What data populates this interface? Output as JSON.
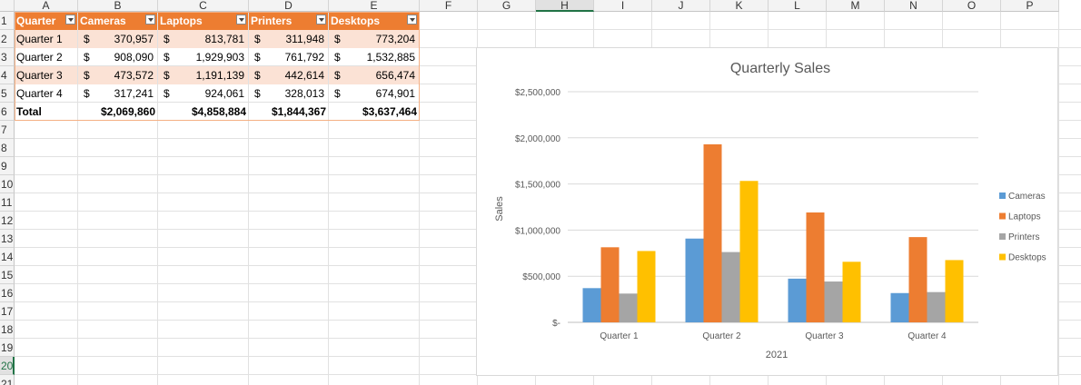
{
  "columns": [
    "A",
    "B",
    "C",
    "D",
    "E",
    "F",
    "G",
    "H",
    "I",
    "J",
    "K",
    "L",
    "M",
    "N",
    "O",
    "P"
  ],
  "rows": [
    "1",
    "2",
    "3",
    "4",
    "5",
    "6",
    "7",
    "8",
    "9",
    "10",
    "11",
    "12",
    "13",
    "14",
    "15",
    "16",
    "17",
    "18",
    "19",
    "20",
    "21"
  ],
  "selected_column": "H",
  "selected_row": "20",
  "table": {
    "headers": [
      "Quarter",
      "Cameras",
      "Laptops",
      "Printers",
      "Desktops"
    ],
    "rows": [
      {
        "quarter": "Quarter 1",
        "values": [
          "370,957",
          "813,781",
          "311,948",
          "773,204"
        ]
      },
      {
        "quarter": "Quarter 2",
        "values": [
          "908,090",
          "1,929,903",
          "761,792",
          "1,532,885"
        ]
      },
      {
        "quarter": "Quarter 3",
        "values": [
          "473,572",
          "1,191,139",
          "442,614",
          "656,474"
        ]
      },
      {
        "quarter": "Quarter 4",
        "values": [
          "317,241",
          "924,061",
          "328,013",
          "674,901"
        ]
      }
    ],
    "currency_symbol": "$",
    "total_label": "Total",
    "totals": [
      "$2,069,860",
      "$4,858,884",
      "$1,844,367",
      "$3,637,464"
    ]
  },
  "colors": {
    "header": "#ed7d31",
    "band": "#fbe2d5",
    "cameras": "#5b9bd5",
    "laptops": "#ed7d31",
    "printers": "#a5a5a5",
    "desktops": "#ffc000"
  },
  "chart_data": {
    "type": "bar",
    "title": "Quarterly Sales",
    "xlabel": "2021",
    "ylabel": "Sales",
    "categories": [
      "Quarter 1",
      "Quarter 2",
      "Quarter 3",
      "Quarter 4"
    ],
    "series": [
      {
        "name": "Cameras",
        "values": [
          370957,
          908090,
          473572,
          317241
        ]
      },
      {
        "name": "Laptops",
        "values": [
          813781,
          1929903,
          1191139,
          924061
        ]
      },
      {
        "name": "Printers",
        "values": [
          311948,
          761792,
          442614,
          328013
        ]
      },
      {
        "name": "Desktops",
        "values": [
          773204,
          1532885,
          656474,
          674901
        ]
      }
    ],
    "ylim": [
      0,
      2500000
    ],
    "yticks": [
      0,
      500000,
      1000000,
      1500000,
      2000000,
      2500000
    ],
    "ytick_labels": [
      "$-",
      "$500,000",
      "$1,000,000",
      "$1,500,000",
      "$2,000,000",
      "$2,500,000"
    ],
    "grid": true,
    "legend": "right"
  }
}
